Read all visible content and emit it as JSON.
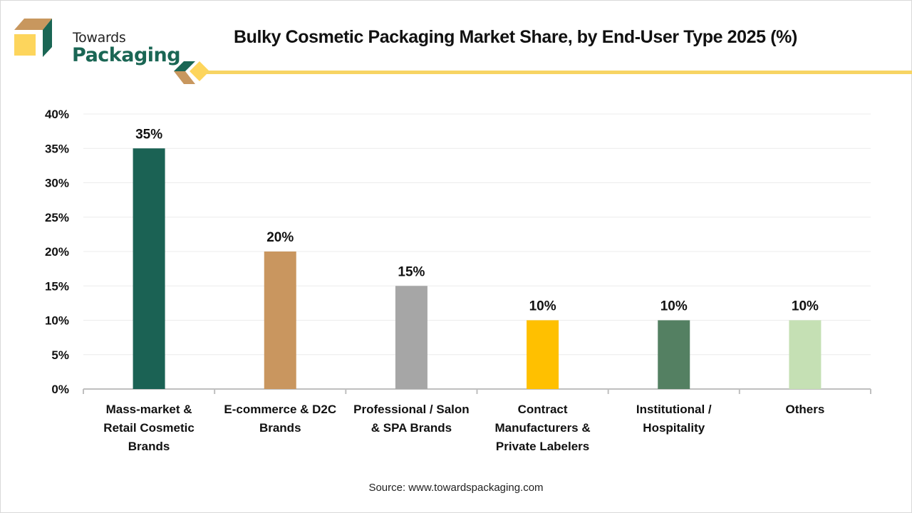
{
  "brand": {
    "line1": "Towards",
    "line2": "Packaging",
    "colors": {
      "green": "#1a6654",
      "tan": "#c8975e",
      "yellow": "#f7d463"
    }
  },
  "header": {
    "title": "Bulky Cosmetic Packaging Market Share, by End-User Type 2025 (%)"
  },
  "footer": {
    "source": "Source: www.towardspackaging.com"
  },
  "chart_data": {
    "type": "bar",
    "title": "Bulky Cosmetic Packaging Market Share, by End-User Type 2025 (%)",
    "xlabel": "",
    "ylabel": "",
    "ylim": [
      0,
      40
    ],
    "yticks": [
      0,
      5,
      10,
      15,
      20,
      25,
      30,
      35,
      40
    ],
    "ytick_labels": [
      "0%",
      "5%",
      "10%",
      "15%",
      "20%",
      "25%",
      "30%",
      "35%",
      "40%"
    ],
    "grid": true,
    "legend": "none",
    "categories": [
      [
        "Mass-market &",
        "Retail Cosmetic",
        "Brands"
      ],
      [
        "E-commerce & D2C",
        "Brands"
      ],
      [
        "Professional / Salon",
        "& SPA Brands"
      ],
      [
        "Contract",
        "Manufacturers &",
        "Private Labelers"
      ],
      [
        "Institutional /",
        "Hospitality"
      ],
      [
        "Others"
      ]
    ],
    "values": [
      35,
      20,
      15,
      10,
      10,
      10
    ],
    "data_labels": [
      "35%",
      "20%",
      "15%",
      "10%",
      "10%",
      "10%"
    ],
    "colors": [
      "#1b6254",
      "#c9965f",
      "#a6a6a6",
      "#ffc000",
      "#548062",
      "#c5e0b4"
    ]
  }
}
